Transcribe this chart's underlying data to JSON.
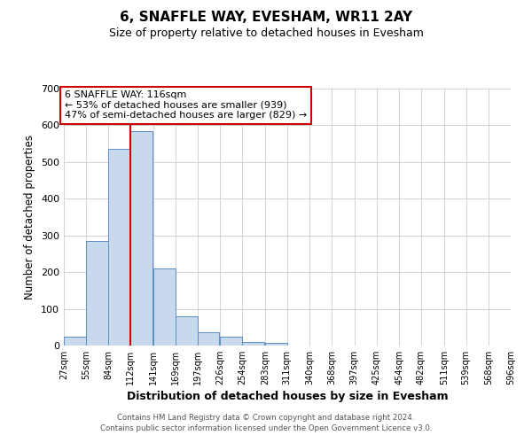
{
  "title": "6, SNAFFLE WAY, EVESHAM, WR11 2AY",
  "subtitle": "Size of property relative to detached houses in Evesham",
  "xlabel": "Distribution of detached houses by size in Evesham",
  "ylabel": "Number of detached properties",
  "bar_color": "#c9d9ed",
  "bar_edge_color": "#5b8ec4",
  "bg_color": "#ffffff",
  "grid_color": "#cccccc",
  "annotation_box_color": "#cc0000",
  "vline_color": "#cc0000",
  "vline_x": 112,
  "annotation_text": "6 SNAFFLE WAY: 116sqm\n← 53% of detached houses are smaller (939)\n47% of semi-detached houses are larger (829) →",
  "bins_left": [
    27,
    55,
    84,
    112,
    141,
    169,
    197,
    226,
    254,
    283,
    311,
    340,
    368,
    397,
    425,
    454,
    482,
    511,
    539,
    568
  ],
  "bin_width": 28,
  "bar_heights": [
    25,
    285,
    535,
    585,
    210,
    80,
    37,
    25,
    10,
    8,
    0,
    0,
    0,
    0,
    0,
    0,
    0,
    0,
    0,
    0
  ],
  "ylim": [
    0,
    700
  ],
  "yticks": [
    0,
    100,
    200,
    300,
    400,
    500,
    600,
    700
  ],
  "xtick_labels": [
    "27sqm",
    "55sqm",
    "84sqm",
    "112sqm",
    "141sqm",
    "169sqm",
    "197sqm",
    "226sqm",
    "254sqm",
    "283sqm",
    "311sqm",
    "340sqm",
    "368sqm",
    "397sqm",
    "425sqm",
    "454sqm",
    "482sqm",
    "511sqm",
    "539sqm",
    "568sqm",
    "596sqm"
  ],
  "footer1": "Contains HM Land Registry data © Crown copyright and database right 2024.",
  "footer2": "Contains public sector information licensed under the Open Government Licence v3.0."
}
